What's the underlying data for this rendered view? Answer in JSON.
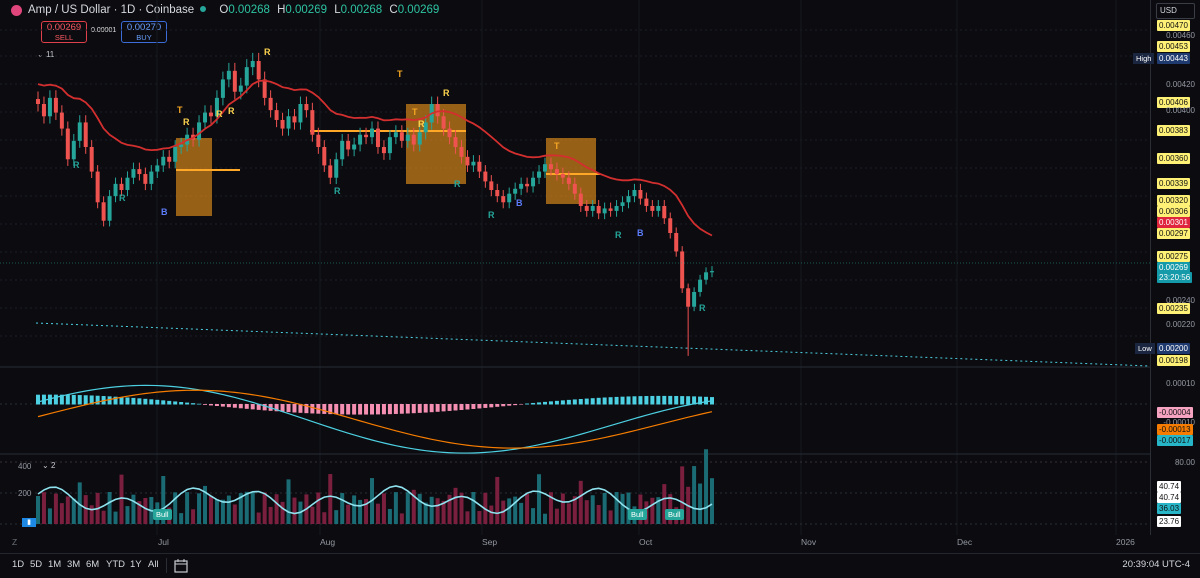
{
  "header": {
    "title": "Amp / US Dollar · 1D · Coinbase",
    "ohlc": {
      "o_label": "O",
      "o": "0.00268",
      "h_label": "H",
      "h": "0.00269",
      "l_label": "L",
      "l": "0.00268",
      "c_label": "C",
      "c": "0.00269"
    },
    "sell": {
      "price": "0.00269",
      "label": "SELL"
    },
    "buy": {
      "price": "0.00270",
      "label": "BUY"
    },
    "spread": "0.00001",
    "indicator_count": "11",
    "pane3_count": "2",
    "currency": "USD"
  },
  "price_axis": {
    "labels": [
      "0.00470",
      "0.00460",
      "0.00453",
      "0.00443",
      "0.00420",
      "0.00406",
      "0.00400",
      "0.00383",
      "0.00360",
      "0.00339",
      "0.00320",
      "0.00306",
      "0.00301",
      "0.00297",
      "0.00275",
      "0.00269",
      "23:20:56",
      "0.00240",
      "0.00235",
      "0.00220",
      "0.00200",
      "0.00198"
    ],
    "high_label": "High",
    "low_label": "Low"
  },
  "macd_axis": {
    "labels": [
      "0.00010",
      "-0.00004",
      "-0.00010",
      "-0.00013",
      "-0.00017"
    ]
  },
  "rsi_axis": {
    "labels": [
      "400",
      "200",
      "80.00",
      "40.74",
      "40.74",
      "36.03",
      "23.76"
    ],
    "bull_label": "Bull"
  },
  "time_axis": {
    "labels": [
      "Jul",
      "Aug",
      "Sep",
      "Oct",
      "Nov",
      "Dec",
      "2026"
    ],
    "z_label": "Z"
  },
  "bottom_bar": {
    "ranges": [
      "1D",
      "5D",
      "1M",
      "3M",
      "6M",
      "YTD",
      "1Y",
      "All"
    ],
    "clock": "20:39:04 UTC-4"
  },
  "signals": {
    "r": "R",
    "b": "B",
    "t": "T"
  },
  "colors": {
    "up": "#26a69a",
    "down": "#ef5350",
    "ema": "#d32f2f",
    "ema_green": "#2e7d32",
    "orange": "#f5a623",
    "cyan": "#4dd0e1"
  },
  "chart_data": {
    "type": "candlestick",
    "x_labels": [
      "Jul",
      "Aug",
      "Sep",
      "Oct",
      "Nov",
      "Dec",
      "2026"
    ],
    "ylim": [
      0.00195,
      0.00475
    ],
    "last_price": 0.00269,
    "high": 0.00443,
    "low": 0.002,
    "closes": [
      0.00405,
      0.00395,
      0.0041,
      0.00398,
      0.00385,
      0.0036,
      0.00375,
      0.0039,
      0.0037,
      0.0035,
      0.00325,
      0.0031,
      0.0033,
      0.0034,
      0.00335,
      0.00345,
      0.00352,
      0.00348,
      0.0034,
      0.0035,
      0.00355,
      0.00362,
      0.00358,
      0.0037,
      0.00372,
      0.0038,
      0.00376,
      0.0039,
      0.00398,
      0.00395,
      0.0041,
      0.00425,
      0.00432,
      0.00415,
      0.0042,
      0.00435,
      0.0044,
      0.00425,
      0.0041,
      0.004,
      0.00392,
      0.00385,
      0.00395,
      0.0039,
      0.00405,
      0.004,
      0.0038,
      0.0037,
      0.00355,
      0.00345,
      0.0036,
      0.00375,
      0.00368,
      0.00372,
      0.0038,
      0.00378,
      0.00385,
      0.0037,
      0.00365,
      0.00378,
      0.00382,
      0.00375,
      0.0038,
      0.00372,
      0.00382,
      0.0039,
      0.00405,
      0.00395,
      0.00385,
      0.00378,
      0.0037,
      0.00362,
      0.00355,
      0.00358,
      0.0035,
      0.00342,
      0.00335,
      0.0033,
      0.00325,
      0.00332,
      0.00336,
      0.0034,
      0.00338,
      0.00345,
      0.0035,
      0.00356,
      0.00352,
      0.00348,
      0.00345,
      0.0034,
      0.00332,
      0.00322,
      0.00318,
      0.00322,
      0.00316,
      0.0032,
      0.00318,
      0.00322,
      0.00325,
      0.0033,
      0.00335,
      0.00328,
      0.00322,
      0.00318,
      0.00322,
      0.00312,
      0.003,
      0.00285,
      0.00255,
      0.0024,
      0.00252,
      0.00262,
      0.00268,
      0.00269
    ]
  }
}
